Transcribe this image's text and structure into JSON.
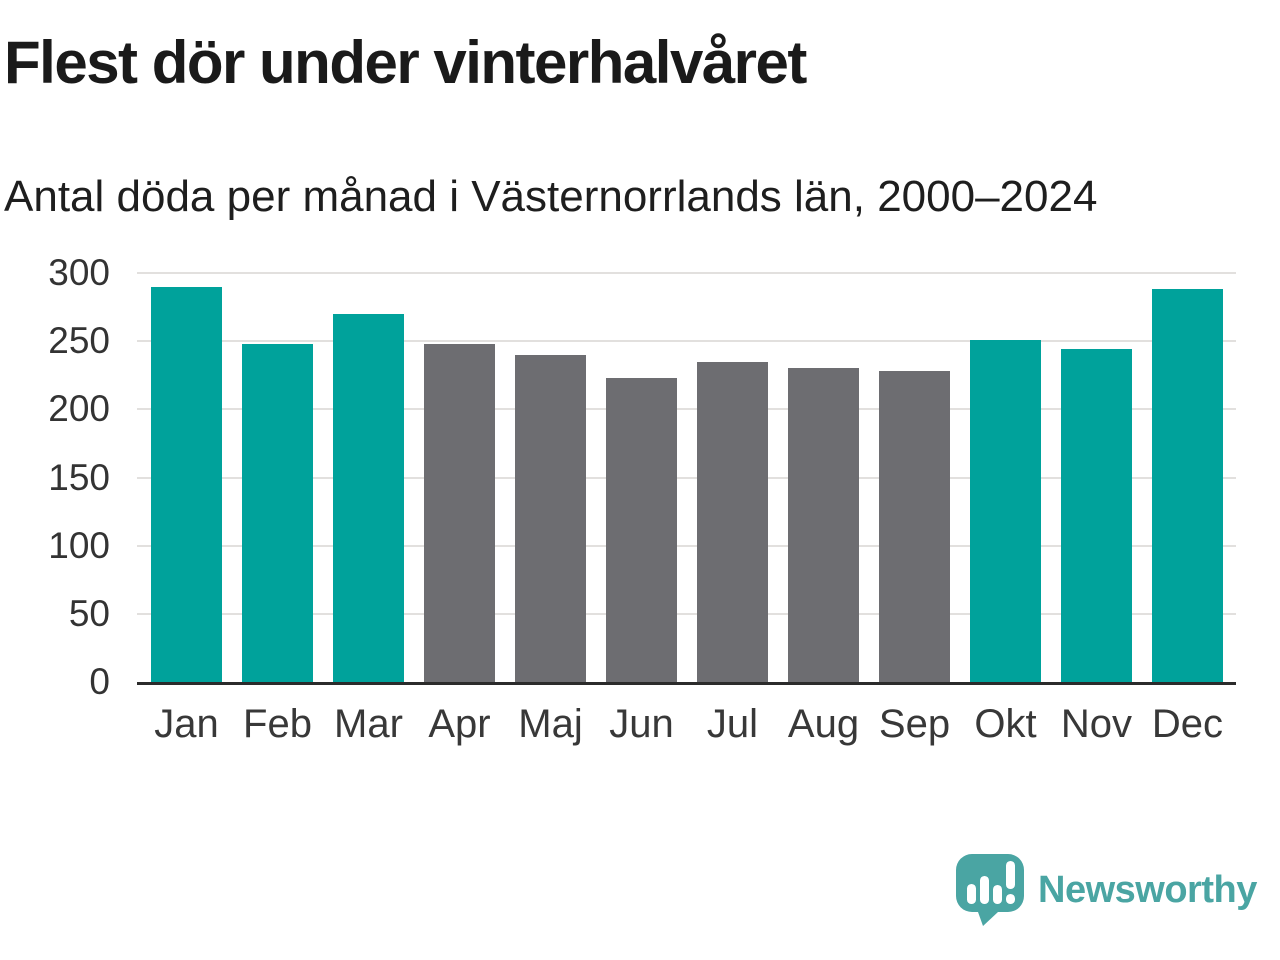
{
  "chart_data": {
    "type": "bar",
    "title": "Flest dör under vinterhalvåret",
    "subtitle": "Antal döda per månad i Västernorrlands län, 2000–2024",
    "categories": [
      "Jan",
      "Feb",
      "Mar",
      "Apr",
      "Maj",
      "Jun",
      "Jul",
      "Aug",
      "Sep",
      "Okt",
      "Nov",
      "Dec"
    ],
    "values": [
      290,
      248,
      270,
      248,
      240,
      223,
      235,
      230,
      228,
      251,
      244,
      288
    ],
    "groups": [
      "winter",
      "winter",
      "winter",
      "summer",
      "summer",
      "summer",
      "summer",
      "summer",
      "summer",
      "winter",
      "winter",
      "winter"
    ],
    "colors": {
      "winter": "#00a29b",
      "summer": "#6d6d71"
    },
    "xlabel": "",
    "ylabel": "",
    "ylim": [
      0,
      300
    ],
    "yticks": [
      0,
      50,
      100,
      150,
      200,
      250,
      300
    ],
    "grid": true,
    "legend": false
  },
  "footer": {
    "brand": "Newsworthy",
    "brand_color": "#4aa5a3",
    "icon": "speech-bubble-bar-chart-exclamation"
  }
}
